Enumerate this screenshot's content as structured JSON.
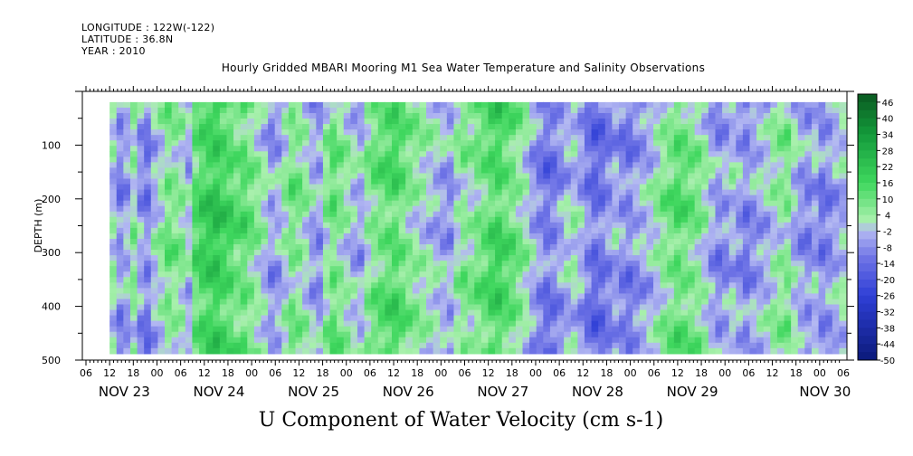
{
  "header": {
    "longitude": "LONGITUDE : 122W(-122)",
    "latitude": "LATITUDE : 36.8N",
    "year": "YEAR : 2010"
  },
  "title": "Hourly Gridded MBARI Mooring M1 Sea Water Temperature and Salinity Observations",
  "subtitle": "U Component of Water Velocity (cm s-1)",
  "colors": {
    "strong_negative": "#0b1a7a",
    "negative": "#6f74e6",
    "weak_negative": "#b3b8f2",
    "weak_positive": "#a8f0ac",
    "positive": "#3fd75e",
    "strong_positive": "#0a5a21"
  },
  "chart_data": {
    "type": "heatmap",
    "variable": "U Component of Water Velocity (cm s-1)",
    "ylabel": "DEPTH (m)",
    "y_ticks": [
      100,
      200,
      300,
      400,
      500
    ],
    "ylim": [
      20,
      500
    ],
    "y_inverted": true,
    "x_hour_ticks": [
      "06",
      "12",
      "18",
      "00",
      "06",
      "12",
      "18",
      "00",
      "06",
      "12",
      "18",
      "00",
      "06",
      "12",
      "18",
      "00",
      "06",
      "12",
      "18",
      "00",
      "06",
      "12",
      "18",
      "00",
      "06",
      "12",
      "18",
      "00",
      "06",
      "12",
      "18",
      "00",
      "06"
    ],
    "x_day_labels": [
      "NOV 23",
      "NOV 24",
      "NOV 25",
      "NOV 26",
      "NOV 27",
      "NOV 28",
      "NOV 29",
      "NOV 30"
    ],
    "data_start": "NOV 23 12:00",
    "data_end": "NOV 30 06:00",
    "colorbar_labels": [
      "46",
      "40",
      "34",
      "28",
      "22",
      "16",
      "10",
      "4",
      "-2",
      "-8",
      "-14",
      "-20",
      "-26",
      "-32",
      "-38",
      "-44",
      "-50"
    ],
    "colorbar_range": [
      -50,
      49
    ],
    "colorbar_step": 3,
    "column_means": [
      0,
      -8,
      -4,
      4,
      -6,
      -10,
      -2,
      2,
      8,
      6,
      4,
      -2,
      12,
      16,
      18,
      20,
      16,
      14,
      10,
      12,
      8,
      4,
      0,
      -6,
      -4,
      2,
      8,
      6,
      2,
      -4,
      -6,
      4,
      10,
      6,
      2,
      -2,
      -4,
      4,
      8,
      10,
      12,
      14,
      10,
      6,
      4,
      2,
      0,
      -2,
      -4,
      -6,
      2,
      6,
      4,
      8,
      10,
      14,
      16,
      12,
      10,
      6,
      2,
      -4,
      -8,
      -12,
      -10,
      -6,
      -2,
      0,
      -4,
      -10,
      -14,
      -12,
      -8,
      -4,
      -8,
      -10,
      -6,
      -4,
      -2,
      2,
      6,
      8,
      12,
      10,
      8,
      6,
      2,
      -4,
      -8,
      -6,
      -2,
      -6,
      -10,
      -6,
      -4,
      -2,
      2,
      4,
      6,
      -2,
      -6,
      -8,
      -4,
      -10,
      -8,
      -4,
      -2
    ]
  }
}
